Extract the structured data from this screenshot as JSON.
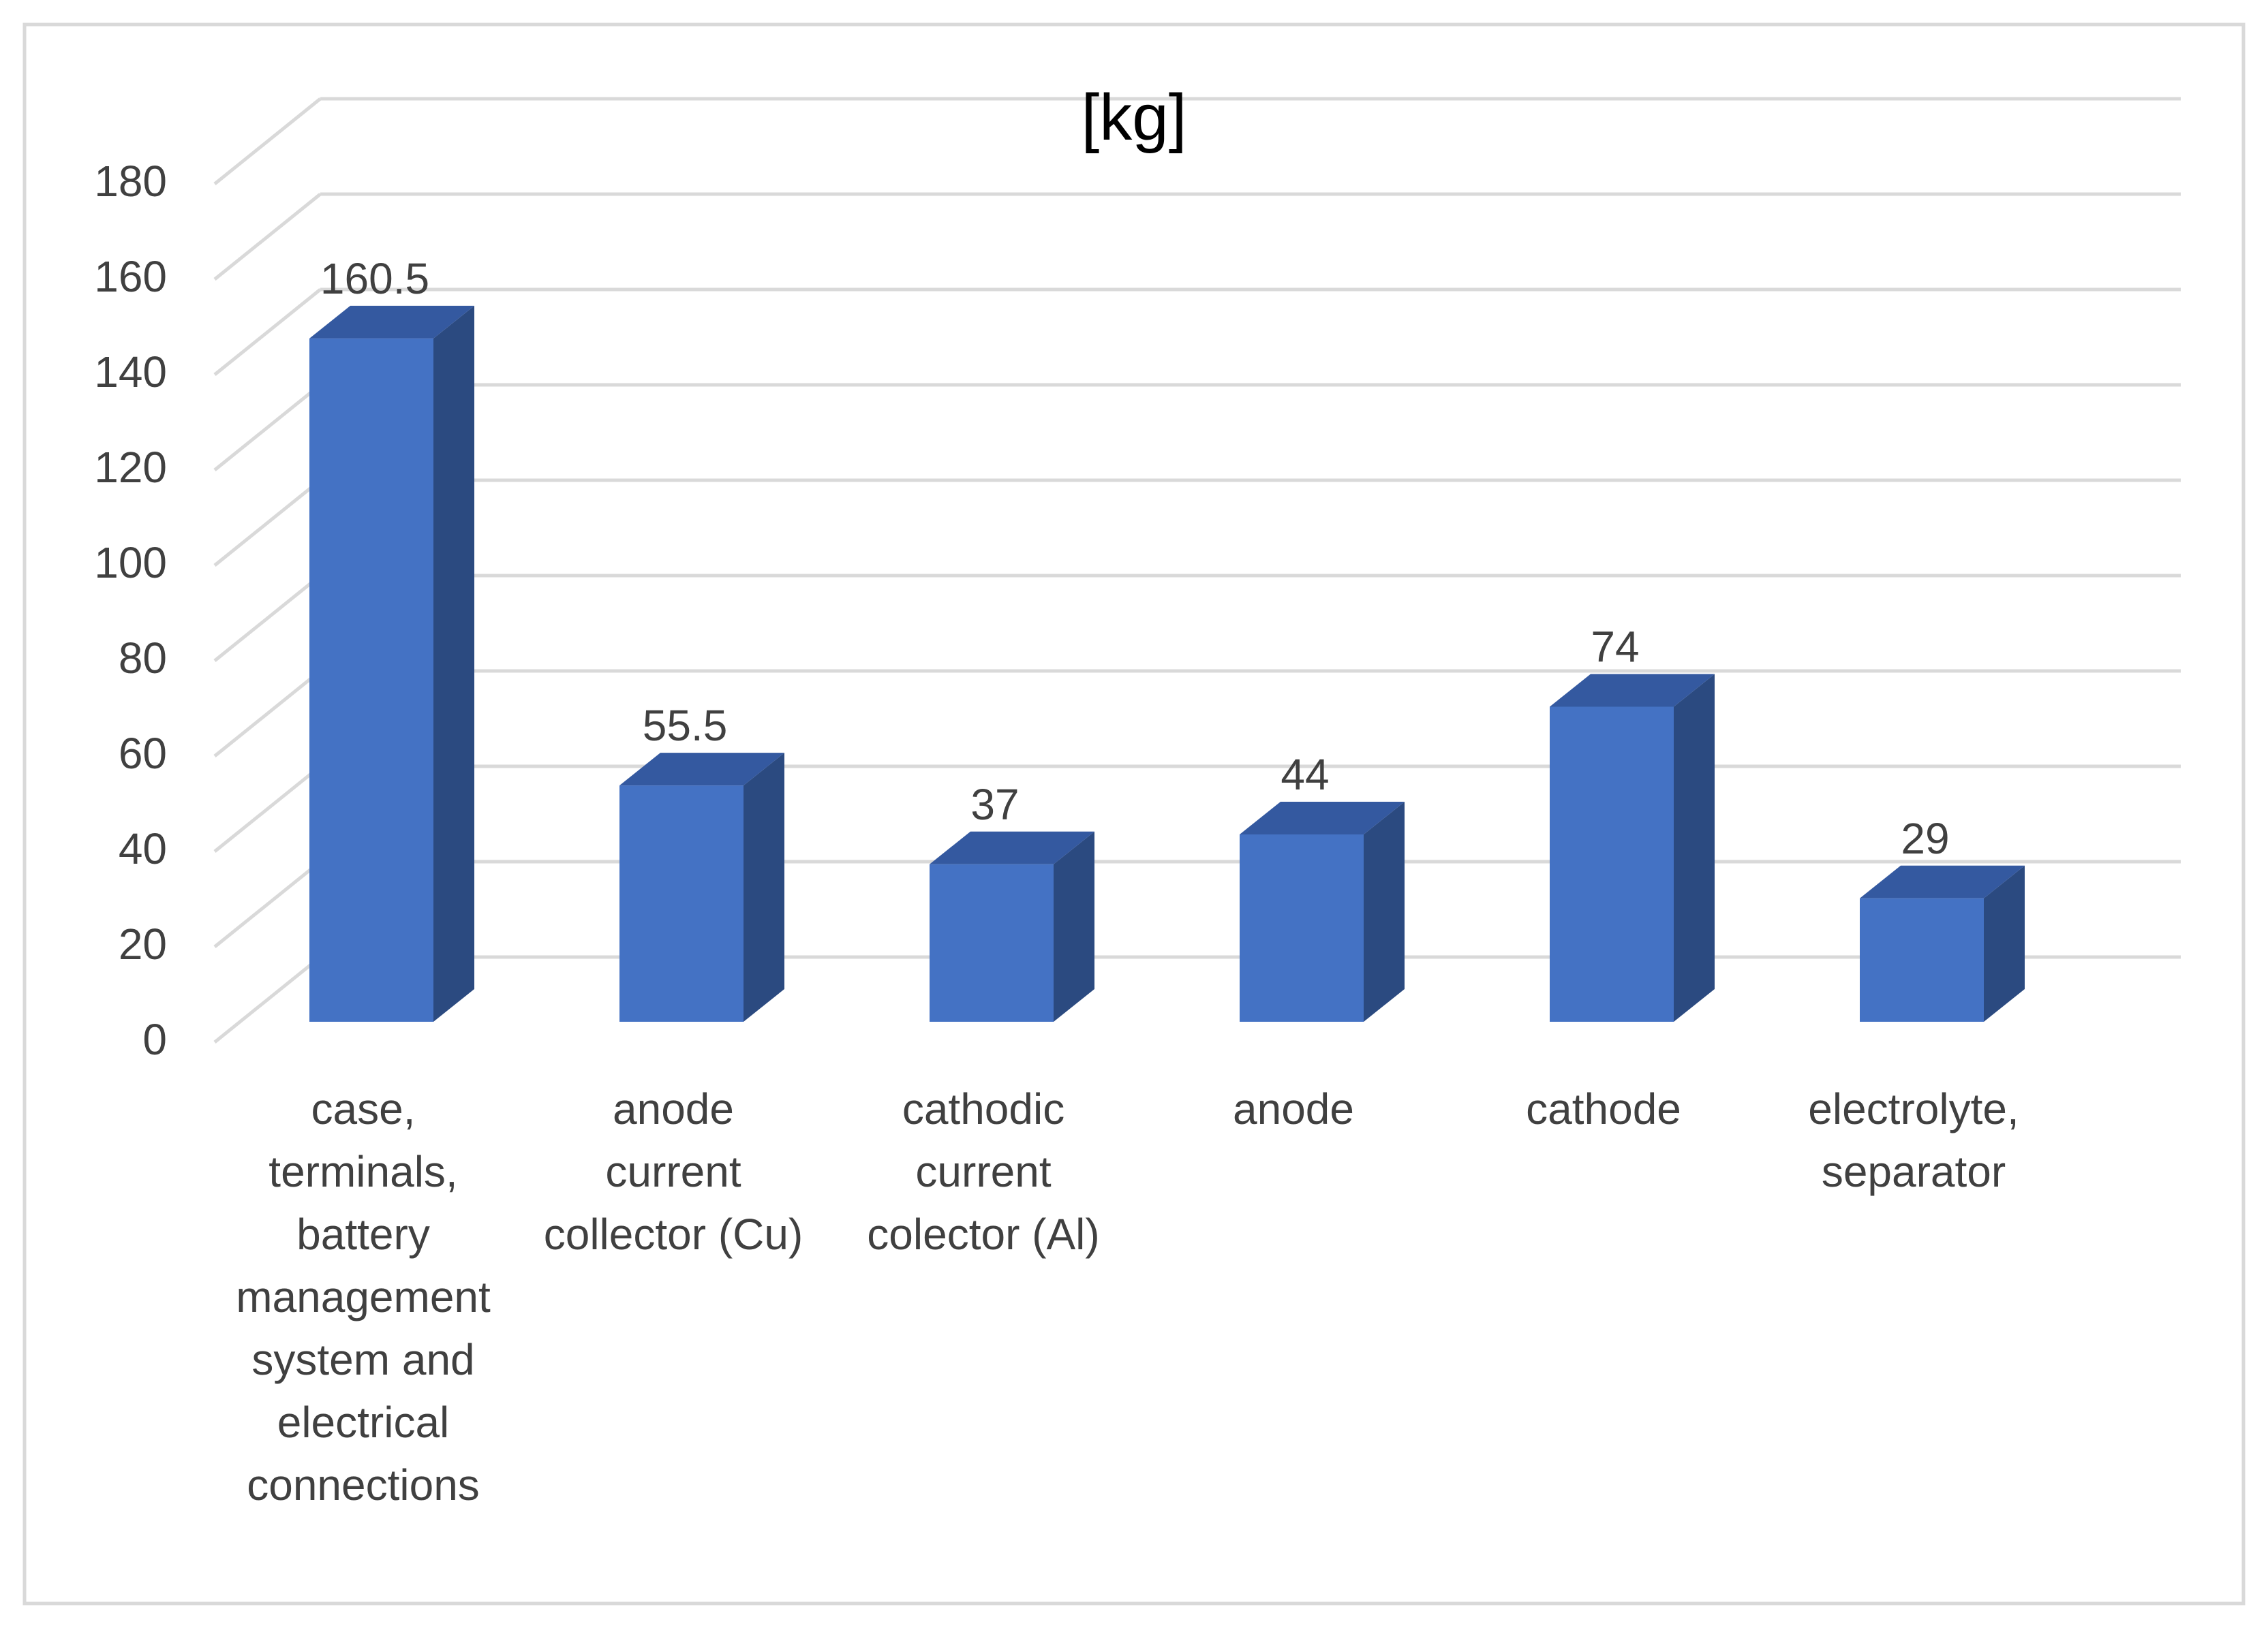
{
  "chart_data": {
    "type": "bar",
    "title": "[kg]",
    "categories": [
      [
        "case,",
        "terminals,",
        "battery",
        "management",
        "system and",
        "electrical",
        "connections"
      ],
      [
        "anode",
        "current",
        "collector (Cu)"
      ],
      [
        "cathodic",
        "current",
        "colector (Al)"
      ],
      [
        "anode"
      ],
      [
        "cathode"
      ],
      [
        "electrolyte,",
        "separator"
      ]
    ],
    "values": [
      160.5,
      55.5,
      37,
      44,
      74,
      29
    ],
    "data_labels": [
      "160.5",
      "55.5",
      "37",
      "44",
      "74",
      "29"
    ],
    "ylim": [
      0,
      180
    ],
    "yticks": [
      0,
      20,
      40,
      60,
      80,
      100,
      120,
      140,
      160,
      180
    ],
    "grid": true,
    "legend": "none",
    "style": "3d-column",
    "colors": {
      "bar_front": "#4472C4",
      "bar_side": "#2B4A80",
      "bar_top": "#3459A0",
      "grid": "#D9D9D9",
      "border": "#D9D9D9"
    }
  }
}
